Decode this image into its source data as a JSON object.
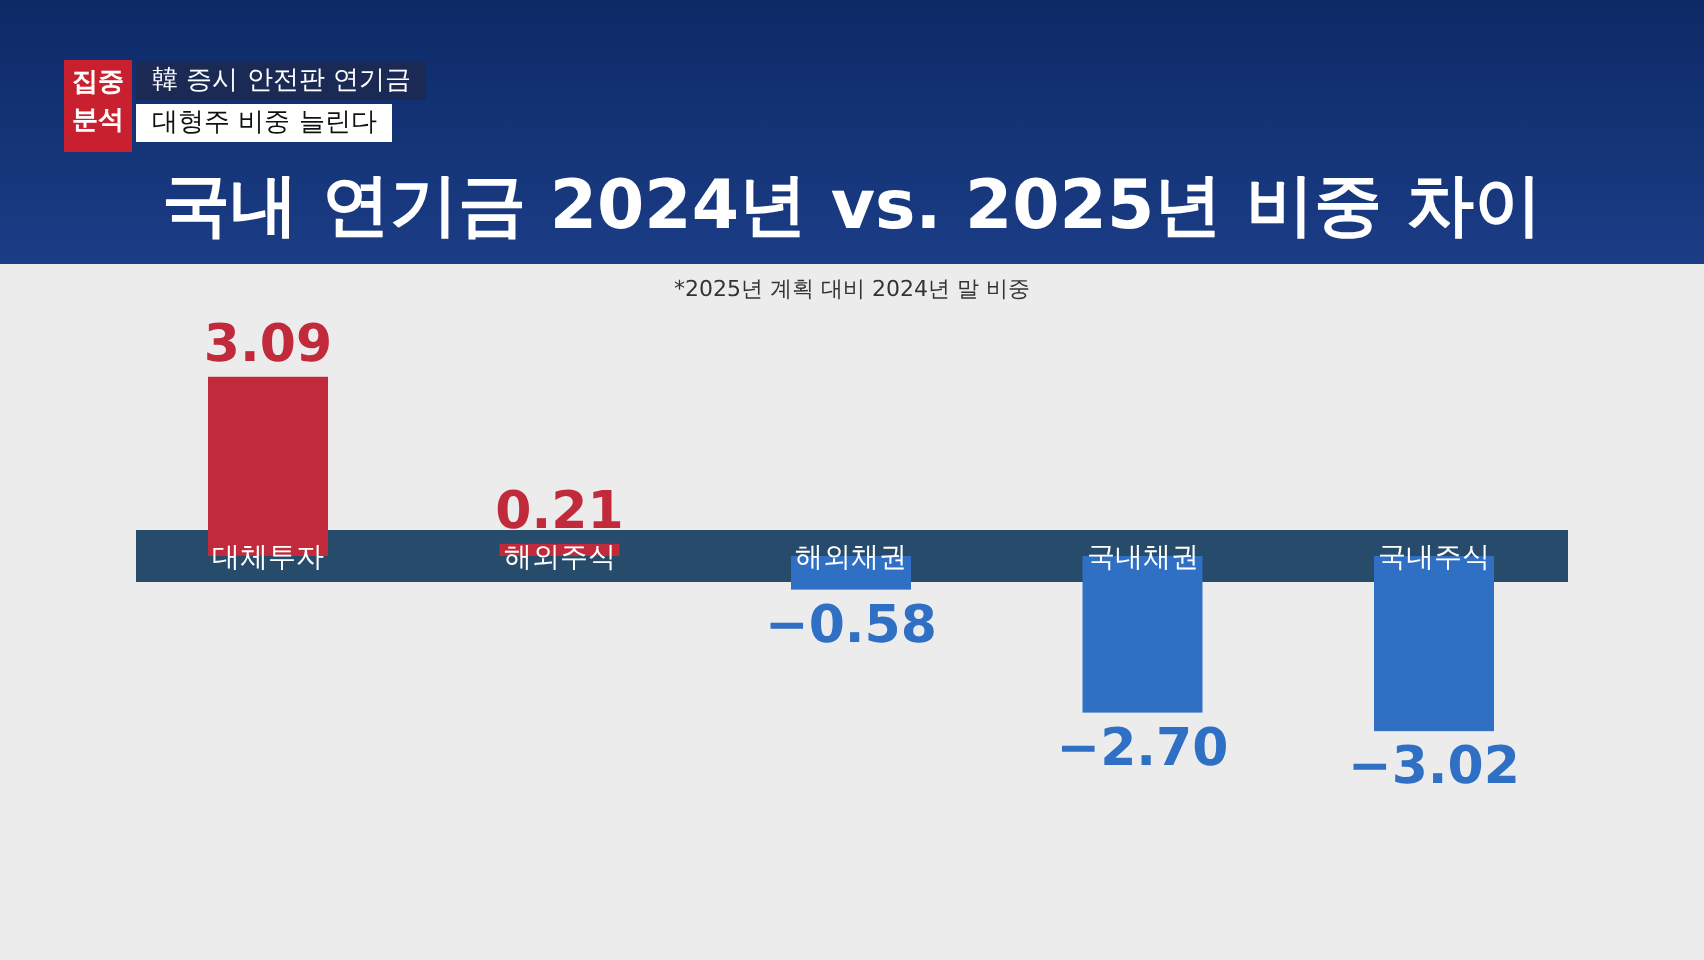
{
  "chart_data": {
    "type": "bar",
    "title": "국내 연기금 2024년 vs. 2025년 비중 차이",
    "subtitle": "*2025년 계획 대비 2024년 말 비중",
    "annotations": [
      "집중분석",
      "韓 증시 안전판 연기금",
      "대형주 비중 늘린다"
    ],
    "categories": [
      "대체투자",
      "해외주식",
      "해외채권",
      "국내채권",
      "국내주식"
    ],
    "values": [
      3.09,
      0.21,
      -0.58,
      -2.7,
      -3.02
    ],
    "colors": [
      "#c12a3b",
      "#c12a3b",
      "#2f70c5",
      "#2f70c5",
      "#2f70c5"
    ],
    "value_labels": [
      "3.09",
      "0.21",
      "−0.58",
      "−2.70",
      "−3.02"
    ]
  }
}
